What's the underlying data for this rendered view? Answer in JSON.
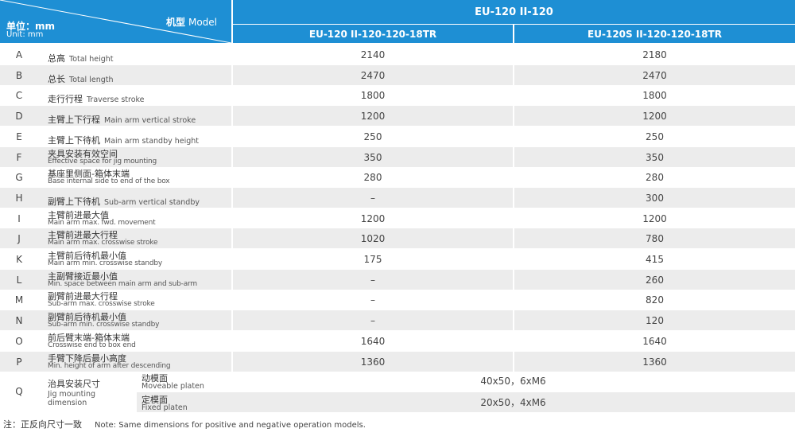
{
  "header": {
    "unit_cn": "单位：mm",
    "unit_en": "Unit: mm",
    "model_cn": "机型",
    "model_en": "Model",
    "series_title": "EU-120 II-120",
    "models": [
      "EU-120 II-120-120-18TR",
      "EU-120S II-120-120-18TR"
    ]
  },
  "rows": [
    {
      "letter": "A",
      "cn": "总高",
      "en": "Total height",
      "v1": "2140",
      "v2": "2180"
    },
    {
      "letter": "B",
      "cn": "总长",
      "en": "Total length",
      "v1": "2470",
      "v2": "2470"
    },
    {
      "letter": "C",
      "cn": "走行行程",
      "en": "Traverse stroke",
      "v1": "1800",
      "v2": "1800"
    },
    {
      "letter": "D",
      "cn": "主臂上下行程",
      "en": "Main arm vertical stroke",
      "v1": "1200",
      "v2": "1200"
    },
    {
      "letter": "E",
      "cn": "主臂上下待机",
      "en": "Main arm standby height",
      "v1": "250",
      "v2": "250"
    },
    {
      "letter": "F",
      "cn": "夹具安装有效空间",
      "en": "Effective space for jig mounting",
      "v1": "350",
      "v2": "350"
    },
    {
      "letter": "G",
      "cn": "基座里侧面-箱体末端",
      "en": "Base internal side to end of the box",
      "v1": "280",
      "v2": "280"
    },
    {
      "letter": "H",
      "cn": "副臂上下待机",
      "en": "Sub-arm vertical standby",
      "v1": "–",
      "v2": "300"
    },
    {
      "letter": "I",
      "cn": "主臂前进最大值",
      "en": "Main arm max. fwd. movement",
      "v1": "1200",
      "v2": "1200"
    },
    {
      "letter": "J",
      "cn": "主臂前进最大行程",
      "en": "Main arm max. crosswise stroke",
      "v1": "1020",
      "v2": "780"
    },
    {
      "letter": "K",
      "cn": "主臂前后待机最小值",
      "en": "Main arm min. crosswise standby",
      "v1": "175",
      "v2": "415"
    },
    {
      "letter": "L",
      "cn": "主副臂接近最小值",
      "en": "Min. space between main arm and sub-arm",
      "v1": "–",
      "v2": "260"
    },
    {
      "letter": "M",
      "cn": "副臂前进最大行程",
      "en": "Sub-arm max. crosswise stroke",
      "v1": "–",
      "v2": "820"
    },
    {
      "letter": "N",
      "cn": "副臂前后待机最小值",
      "en": "Sub-arm min. crosswise standby",
      "v1": "–",
      "v2": "120"
    },
    {
      "letter": "O",
      "cn": "前后臂末端-箱体末端",
      "en": "Crosswise end to box end",
      "v1": "1640",
      "v2": "1640"
    },
    {
      "letter": "P",
      "cn": "手臂下降后最小高度",
      "en": "Min. height of arm after descending",
      "v1": "1360",
      "v2": "1360"
    }
  ],
  "q": {
    "letter": "Q",
    "cn": "治具安装尺寸",
    "en_line1": "Jig mounting",
    "en_line2": "dimension",
    "moveable_cn": "动模面",
    "moveable_en": "Moveable platen",
    "moveable_value": "40x50，6xM6",
    "fixed_cn": "定模面",
    "fixed_en": "Fixed platen",
    "fixed_value": "20x50，4xM6"
  },
  "note": {
    "cn": "注：正反向尺寸一致",
    "en": "Note: Same dimensions for positive and negative operation models."
  }
}
